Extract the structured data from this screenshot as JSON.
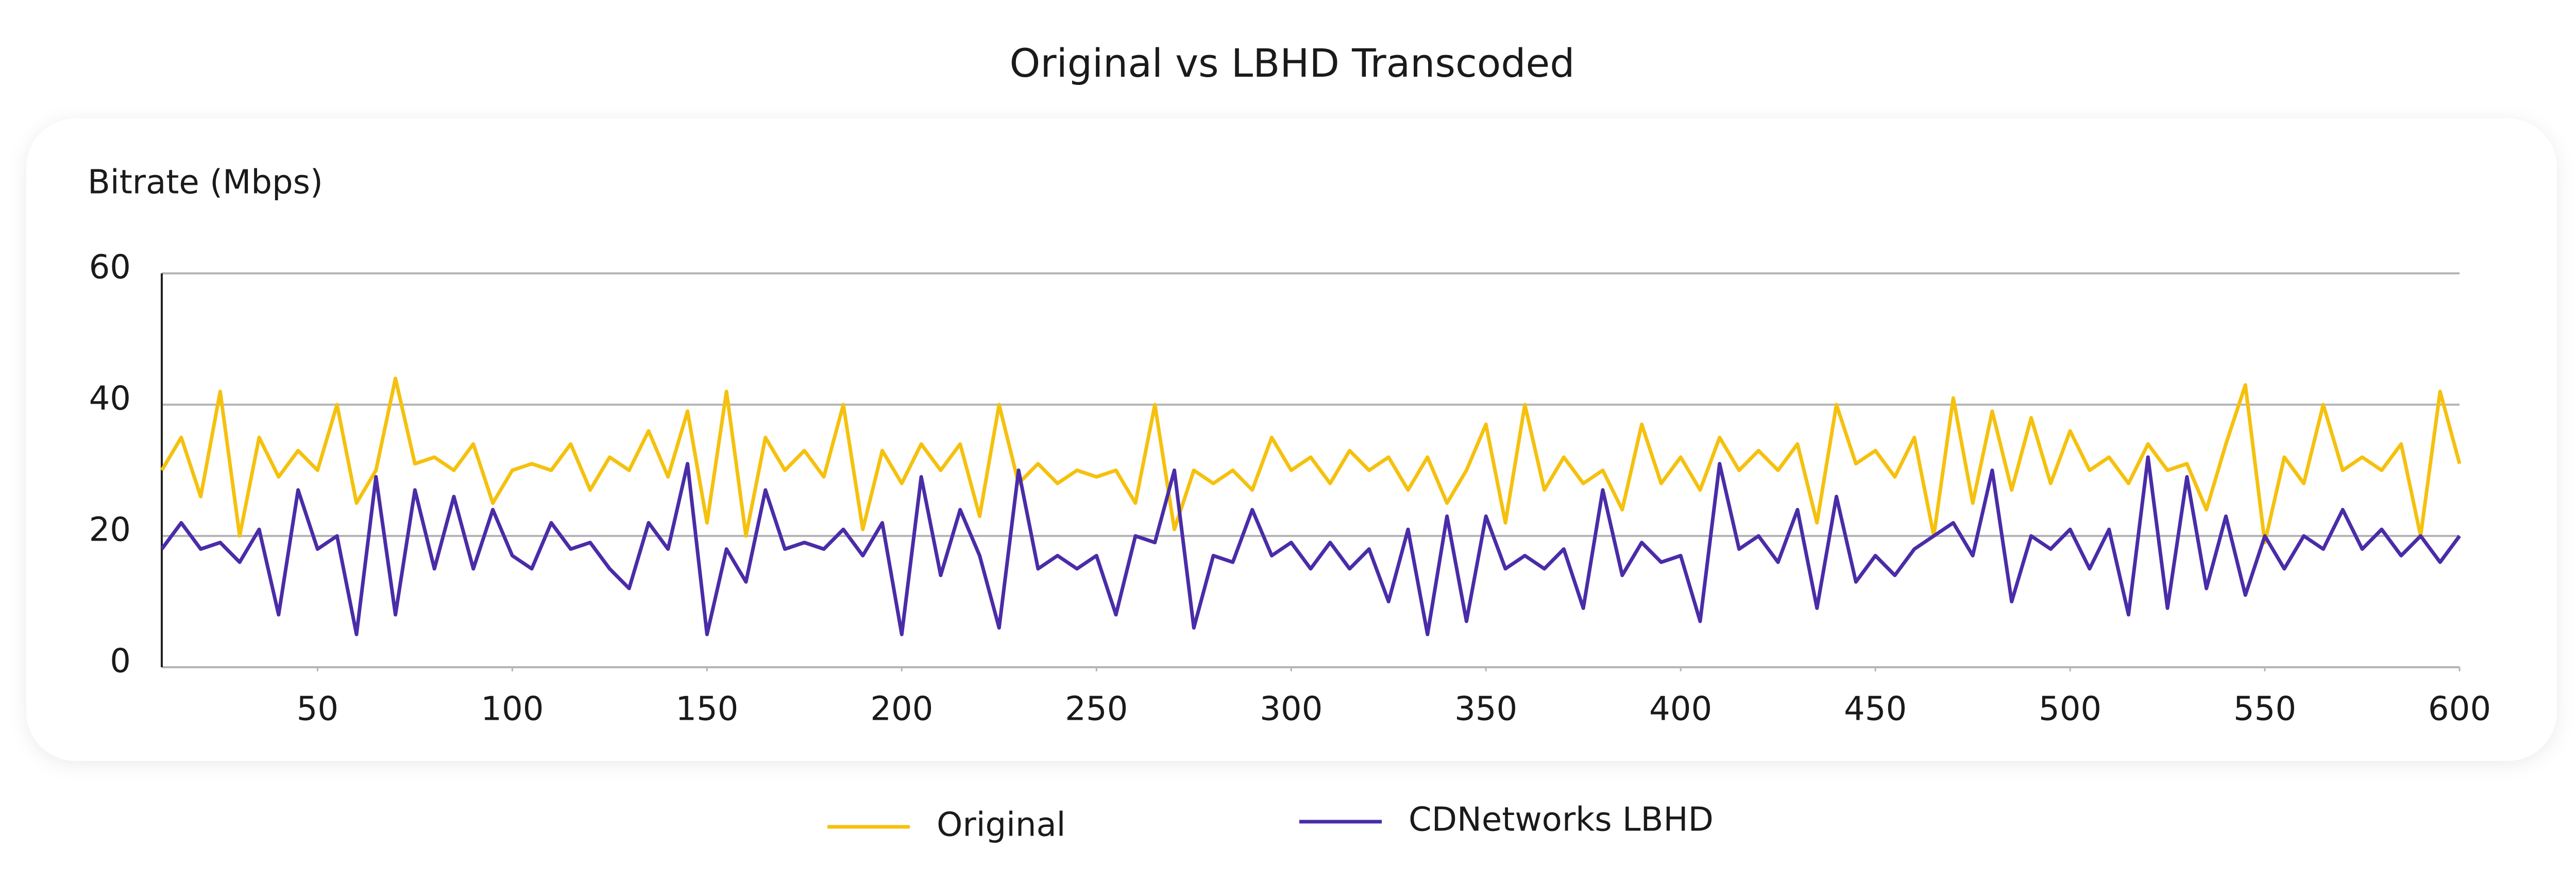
{
  "chart_data": {
    "type": "line",
    "title": "Original vs LBHD Transcoded",
    "y_label": "Bitrate (Mbps)",
    "x": [
      10,
      15,
      20,
      25,
      30,
      35,
      40,
      45,
      50,
      55,
      60,
      65,
      70,
      75,
      80,
      85,
      90,
      95,
      100,
      105,
      110,
      115,
      120,
      125,
      130,
      135,
      140,
      145,
      150,
      155,
      160,
      165,
      170,
      175,
      180,
      185,
      190,
      195,
      200,
      205,
      210,
      215,
      220,
      225,
      230,
      235,
      240,
      245,
      250,
      255,
      260,
      265,
      270,
      275,
      280,
      285,
      290,
      295,
      300,
      305,
      310,
      315,
      320,
      325,
      330,
      335,
      340,
      345,
      350,
      355,
      360,
      365,
      370,
      375,
      380,
      385,
      390,
      395,
      400,
      405,
      410,
      415,
      420,
      425,
      430,
      435,
      440,
      445,
      450,
      455,
      460,
      465,
      470,
      475,
      480,
      485,
      490,
      495,
      500,
      505,
      510,
      515,
      520,
      525,
      530,
      535,
      540,
      545,
      550,
      555,
      560,
      565,
      570,
      575,
      580,
      585,
      590,
      595,
      600
    ],
    "series": [
      {
        "name": "Original",
        "color": "#f5c10e",
        "values": [
          30,
          35,
          26,
          42,
          20,
          35,
          29,
          33,
          30,
          40,
          25,
          30,
          44,
          31,
          32,
          30,
          34,
          25,
          30,
          31,
          30,
          34,
          27,
          32,
          30,
          36,
          29,
          39,
          22,
          42,
          20,
          35,
          30,
          33,
          29,
          40,
          21,
          33,
          28,
          34,
          30,
          34,
          23,
          40,
          28,
          31,
          28,
          30,
          29,
          30,
          25,
          40,
          21,
          30,
          28,
          30,
          27,
          35,
          30,
          32,
          28,
          33,
          30,
          32,
          27,
          32,
          25,
          30,
          37,
          22,
          40,
          27,
          32,
          28,
          30,
          24,
          37,
          28,
          32,
          27,
          35,
          30,
          33,
          30,
          34,
          22,
          40,
          31,
          33,
          29,
          35,
          20,
          41,
          25,
          39,
          27,
          38,
          28,
          36,
          30,
          32,
          28,
          34,
          30,
          31,
          24,
          34,
          43,
          19,
          32,
          28,
          40,
          30,
          32,
          30,
          34,
          20,
          42,
          31
        ]
      },
      {
        "name": "CDNetworks LBHD",
        "color": "#4a2ca8",
        "values": [
          18,
          22,
          18,
          19,
          16,
          21,
          8,
          27,
          18,
          20,
          5,
          29,
          8,
          27,
          15,
          26,
          15,
          24,
          17,
          15,
          22,
          18,
          19,
          15,
          12,
          22,
          18,
          31,
          5,
          18,
          13,
          27,
          18,
          19,
          18,
          21,
          17,
          22,
          5,
          29,
          14,
          24,
          17,
          6,
          30,
          15,
          17,
          15,
          17,
          8,
          20,
          19,
          30,
          6,
          17,
          16,
          24,
          17,
          19,
          15,
          19,
          15,
          18,
          10,
          21,
          5,
          23,
          7,
          23,
          15,
          17,
          15,
          18,
          9,
          27,
          14,
          19,
          16,
          17,
          7,
          31,
          18,
          20,
          16,
          24,
          9,
          26,
          13,
          17,
          14,
          18,
          20,
          22,
          17,
          30,
          10,
          20,
          18,
          21,
          15,
          21,
          8,
          32,
          9,
          29,
          12,
          23,
          11,
          20,
          15,
          20,
          18,
          24,
          18,
          21,
          17,
          20,
          16,
          20
        ]
      }
    ],
    "xlim": [
      10,
      600
    ],
    "ylim": [
      0,
      60
    ],
    "xticks": [
      50,
      100,
      150,
      200,
      250,
      300,
      350,
      400,
      450,
      500,
      550,
      600
    ],
    "yticks": [
      0,
      20,
      40,
      60
    ],
    "grid": true,
    "legend": "bottom"
  }
}
